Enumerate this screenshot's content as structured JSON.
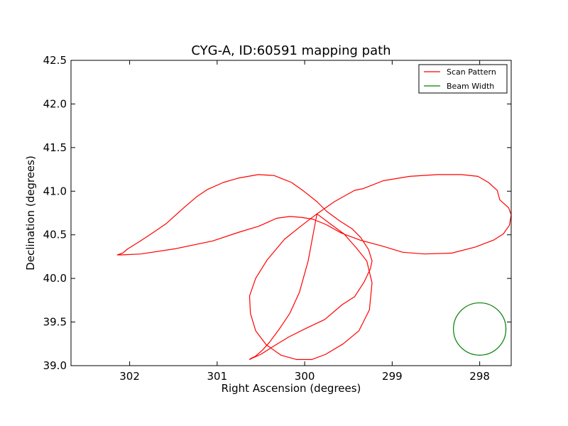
{
  "chart_data": {
    "type": "line",
    "title": "CYG-A, ID:60591 mapping path",
    "xlabel": "Right Ascension (degrees)",
    "ylabel": "Declination (degrees)",
    "xlim": [
      302.67,
      297.64
    ],
    "ylim": [
      39.0,
      42.5
    ],
    "x_ticks": [
      302,
      301,
      300,
      299,
      298
    ],
    "x_tick_labels": [
      "302",
      "301",
      "300",
      "299",
      "298"
    ],
    "y_ticks": [
      39.0,
      39.5,
      40.0,
      40.5,
      41.0,
      41.5,
      42.0,
      42.5
    ],
    "y_tick_labels": [
      "39.0",
      "39.5",
      "40.0",
      "40.5",
      "41.0",
      "41.5",
      "42.0",
      "42.5"
    ],
    "grid": false,
    "legend_position": "top-right",
    "series": [
      {
        "name": "Scan Pattern",
        "color": "#ff0000",
        "x": [
          299.86,
          299.7,
          299.55,
          299.41,
          299.29,
          299.23,
          299.26,
          299.38,
          299.56,
          299.76,
          299.92,
          300.0,
          300.09,
          300.27,
          300.44,
          300.56,
          300.62,
          300.63,
          300.56,
          300.43,
          300.23,
          300.03,
          299.86,
          299.66,
          299.43,
          299.33,
          299.1,
          298.8,
          298.48,
          298.21,
          298.02,
          297.9,
          297.8,
          297.77,
          297.67,
          297.64,
          297.66,
          297.73,
          297.84,
          298.05,
          298.32,
          298.63,
          298.88,
          299.11,
          299.37,
          299.58,
          299.76,
          299.91,
          300.04,
          300.17,
          300.32,
          300.52,
          300.75,
          301.05,
          301.48,
          301.87,
          302.09,
          302.14,
          302.08,
          302.02,
          301.89,
          301.74,
          301.58,
          301.37,
          301.23,
          301.11,
          300.93,
          300.76,
          300.53,
          300.35,
          300.15,
          300.01,
          299.86,
          299.75,
          299.6,
          299.46,
          299.36,
          299.27,
          299.23,
          299.25,
          299.32,
          299.43,
          299.57,
          299.77,
          299.98,
          300.18,
          300.36,
          300.5,
          300.59,
          300.63,
          300.62,
          300.56,
          300.48,
          300.4,
          300.29,
          300.17,
          300.06,
          299.96,
          299.86
        ],
        "y": [
          40.74,
          40.62,
          40.51,
          40.35,
          40.2,
          39.95,
          39.64,
          39.4,
          39.25,
          39.13,
          39.07,
          39.07,
          39.07,
          39.12,
          39.24,
          39.4,
          39.6,
          39.8,
          40.0,
          40.21,
          40.45,
          40.61,
          40.74,
          40.88,
          41.01,
          41.03,
          41.12,
          41.17,
          41.19,
          41.19,
          41.17,
          41.1,
          41.01,
          40.9,
          40.81,
          40.73,
          40.61,
          40.51,
          40.44,
          40.36,
          40.29,
          40.28,
          40.3,
          40.37,
          40.44,
          40.52,
          40.62,
          40.68,
          40.7,
          40.71,
          40.69,
          40.6,
          40.53,
          40.43,
          40.34,
          40.28,
          40.27,
          40.27,
          40.29,
          40.34,
          40.42,
          40.52,
          40.63,
          40.82,
          40.94,
          41.02,
          41.1,
          41.15,
          41.19,
          41.18,
          41.1,
          41.0,
          40.88,
          40.77,
          40.66,
          40.57,
          40.47,
          40.33,
          40.2,
          40.11,
          39.96,
          39.79,
          39.7,
          39.53,
          39.43,
          39.33,
          39.22,
          39.13,
          39.09,
          39.07,
          39.08,
          39.11,
          39.18,
          39.27,
          39.42,
          39.6,
          39.84,
          40.2,
          40.74
        ]
      },
      {
        "name": "Beam Width",
        "color": "#008000",
        "center": [
          298.0,
          39.42
        ],
        "radius": 0.3
      }
    ]
  }
}
